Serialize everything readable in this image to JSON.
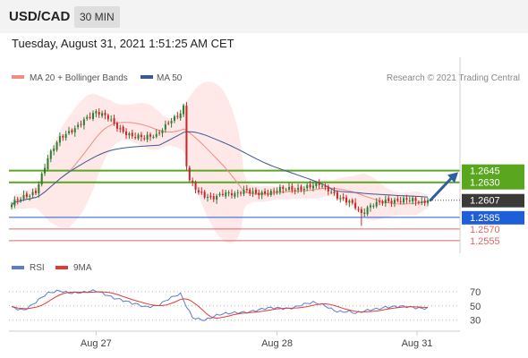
{
  "header": {
    "symbol": "USD/CAD",
    "timeframe": "30 MIN"
  },
  "timestamp": "Tuesday, August 31, 2021 1:51:25 AM CET",
  "colors": {
    "up": "#2e7d32",
    "down": "#c62828",
    "ma20": "#f28b82",
    "ma50": "#3b5998",
    "bands": "#fde0e0",
    "resistance": "#5aa61f",
    "support": "#1e5ed8",
    "target": "#e06666",
    "arrow": "#2f5f9e",
    "rsi": "#5b7bd5",
    "rsi_ma": "#e53935"
  },
  "chart_data": [
    {
      "type": "candlestick",
      "title": "USD/CAD",
      "legend": [
        "MA 20 + Bollinger Bands",
        "MA 50"
      ],
      "copyright": "Research © 2021 Trading Central",
      "ylim": [
        1.2548,
        1.2755
      ],
      "current_price": "1.2607",
      "levels": [
        {
          "label": "1.2645",
          "value": 1.2645,
          "kind": "resistance"
        },
        {
          "label": "1.2630",
          "value": 1.263,
          "kind": "resistance"
        },
        {
          "label": "1.2585",
          "value": 1.2585,
          "kind": "support"
        },
        {
          "label": "1.2570",
          "value": 1.257,
          "kind": "target"
        },
        {
          "label": "1.2555",
          "value": 1.2555,
          "kind": "target"
        }
      ],
      "anchor_closes": [
        [
          0,
          1.26
        ],
        [
          4,
          1.2612
        ],
        [
          8,
          1.262
        ],
        [
          12,
          1.266
        ],
        [
          16,
          1.2685
        ],
        [
          20,
          1.2698
        ],
        [
          24,
          1.2712
        ],
        [
          28,
          1.2718
        ],
        [
          32,
          1.2712
        ],
        [
          36,
          1.27
        ],
        [
          40,
          1.269
        ],
        [
          44,
          1.2685
        ],
        [
          48,
          1.269
        ],
        [
          52,
          1.271
        ],
        [
          56,
          1.2718
        ],
        [
          57,
          1.2725
        ],
        [
          58,
          1.265
        ],
        [
          59,
          1.263
        ],
        [
          62,
          1.2616
        ],
        [
          66,
          1.2612
        ],
        [
          70,
          1.2616
        ],
        [
          74,
          1.2612
        ],
        [
          78,
          1.262
        ],
        [
          82,
          1.2618
        ],
        [
          86,
          1.2616
        ],
        [
          90,
          1.262
        ],
        [
          94,
          1.2622
        ],
        [
          98,
          1.2626
        ],
        [
          102,
          1.2626
        ],
        [
          104,
          1.262
        ],
        [
          108,
          1.2612
        ],
        [
          112,
          1.2608
        ],
        [
          114,
          1.26
        ],
        [
          116,
          1.2588
        ],
        [
          118,
          1.2594
        ],
        [
          120,
          1.26
        ],
        [
          124,
          1.2608
        ],
        [
          128,
          1.2608
        ],
        [
          132,
          1.2606
        ],
        [
          136,
          1.2602
        ],
        [
          138,
          1.2607
        ]
      ],
      "x_ticks": [
        "Aug 27",
        "Aug 28",
        "Aug 31"
      ],
      "arrow": {
        "from": 1.2607,
        "to": 1.2643
      }
    },
    {
      "type": "line",
      "legend": [
        "RSI",
        "9MA"
      ],
      "ylim": [
        22,
        80
      ],
      "y_ticks": [
        "70",
        "50",
        "30"
      ],
      "x_ticks": [
        "Aug 27",
        "Aug 28",
        "Aug 31"
      ],
      "rsi_anchors": [
        [
          0,
          48
        ],
        [
          4,
          46
        ],
        [
          8,
          55
        ],
        [
          12,
          66
        ],
        [
          16,
          72
        ],
        [
          20,
          70
        ],
        [
          24,
          68
        ],
        [
          28,
          70
        ],
        [
          32,
          66
        ],
        [
          36,
          60
        ],
        [
          40,
          52
        ],
        [
          44,
          48
        ],
        [
          48,
          52
        ],
        [
          52,
          60
        ],
        [
          56,
          65
        ],
        [
          58,
          48
        ],
        [
          60,
          34
        ],
        [
          64,
          32
        ],
        [
          68,
          36
        ],
        [
          72,
          38
        ],
        [
          76,
          42
        ],
        [
          80,
          44
        ],
        [
          84,
          45
        ],
        [
          88,
          46
        ],
        [
          92,
          48
        ],
        [
          96,
          52
        ],
        [
          100,
          53
        ],
        [
          104,
          50
        ],
        [
          108,
          44
        ],
        [
          112,
          42
        ],
        [
          114,
          38
        ],
        [
          116,
          40
        ],
        [
          120,
          46
        ],
        [
          124,
          50
        ],
        [
          128,
          48
        ],
        [
          132,
          47
        ],
        [
          136,
          48
        ],
        [
          138,
          49
        ]
      ]
    }
  ]
}
